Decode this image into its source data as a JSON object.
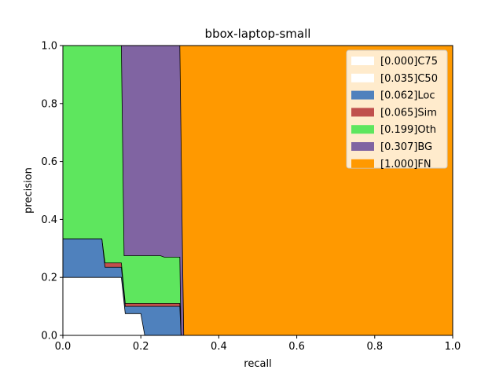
{
  "chart_data": {
    "type": "area",
    "title": "bbox-laptop-small",
    "xlabel": "recall",
    "ylabel": "precision",
    "xlim": [
      0,
      1
    ],
    "ylim": [
      0,
      1
    ],
    "xticks": [
      "0.0",
      "0.2",
      "0.4",
      "0.6",
      "0.8",
      "1.0"
    ],
    "yticks": [
      "0.0",
      "0.2",
      "0.4",
      "0.6",
      "0.8",
      "1.0"
    ],
    "legend_position": "top-right",
    "grid": false,
    "series": [
      {
        "name": "[1.000]FN",
        "color": "#ff9900",
        "points": [
          [
            0.0,
            1.0
          ],
          [
            1.0,
            1.0
          ]
        ]
      },
      {
        "name": "[0.307]BG",
        "color": "#8064a2",
        "points": [
          [
            0.0,
            1.0
          ],
          [
            0.3,
            1.0
          ],
          [
            0.307,
            0.27
          ],
          [
            0.31,
            0.0
          ]
        ]
      },
      {
        "name": "[0.199]Oth",
        "color": "#5ee65e",
        "points": [
          [
            0.0,
            1.0
          ],
          [
            0.15,
            1.0
          ],
          [
            0.157,
            0.275
          ],
          [
            0.25,
            0.275
          ],
          [
            0.26,
            0.27
          ],
          [
            0.3,
            0.27
          ],
          [
            0.303,
            0.0
          ]
        ]
      },
      {
        "name": "[0.065]Sim",
        "color": "#c0504d",
        "points": [
          [
            0.0,
            0.333
          ],
          [
            0.1,
            0.333
          ],
          [
            0.108,
            0.25
          ],
          [
            0.15,
            0.25
          ],
          [
            0.16,
            0.11
          ],
          [
            0.3,
            0.11
          ],
          [
            0.303,
            0.0
          ]
        ]
      },
      {
        "name": "[0.062]Loc",
        "color": "#4f81bd",
        "points": [
          [
            0.0,
            0.333
          ],
          [
            0.1,
            0.333
          ],
          [
            0.108,
            0.235
          ],
          [
            0.15,
            0.235
          ],
          [
            0.16,
            0.1
          ],
          [
            0.3,
            0.1
          ],
          [
            0.303,
            0.0
          ]
        ]
      },
      {
        "name": "[0.035]C50",
        "color": "#ffffff",
        "points": [
          [
            0.0,
            0.2
          ],
          [
            0.15,
            0.2
          ],
          [
            0.16,
            0.075
          ],
          [
            0.2,
            0.075
          ],
          [
            0.21,
            0.0
          ]
        ]
      },
      {
        "name": "[0.000]C75",
        "color": "#ffffff",
        "points": [
          [
            0.0,
            0.0
          ],
          [
            1.0,
            0.0
          ]
        ]
      }
    ],
    "legend": [
      {
        "label": "[0.000]C75",
        "color": "#ffffff"
      },
      {
        "label": "[0.035]C50",
        "color": "#ffffff"
      },
      {
        "label": "[0.062]Loc",
        "color": "#4f81bd"
      },
      {
        "label": "[0.065]Sim",
        "color": "#c0504d"
      },
      {
        "label": "[0.199]Oth",
        "color": "#5ee65e"
      },
      {
        "label": "[0.307]BG",
        "color": "#8064a2"
      },
      {
        "label": "[1.000]FN",
        "color": "#ff9900"
      }
    ]
  }
}
